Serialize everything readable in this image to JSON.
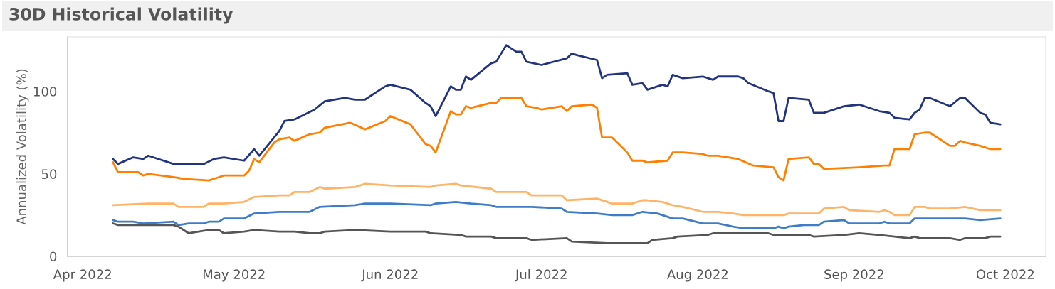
{
  "chart_data": {
    "type": "line",
    "title": "30D Historical Volatility",
    "ylabel": "Annualized Volatility (%)",
    "xlim": [
      "2022-03-29",
      "2022-10-09"
    ],
    "ylim": [
      0,
      133
    ],
    "yticks": [
      0,
      50,
      100
    ],
    "xticks": [
      {
        "value": "2022-04-01",
        "label": "Apr 2022"
      },
      {
        "value": "2022-05-01",
        "label": "May 2022"
      },
      {
        "value": "2022-06-01",
        "label": "Jun 2022"
      },
      {
        "value": "2022-07-01",
        "label": "Jul 2022"
      },
      {
        "value": "2022-08-01",
        "label": "Aug 2022"
      },
      {
        "value": "2022-09-01",
        "label": "Sep 2022"
      },
      {
        "value": "2022-10-01",
        "label": "Oct 2022"
      }
    ],
    "grid": false,
    "legend": false,
    "marker": "none",
    "line_style": "solid",
    "series": [
      {
        "color": "#22337f",
        "x": [
          "2022-04-07",
          "2022-04-08",
          "2022-04-11",
          "2022-04-13",
          "2022-04-14",
          "2022-04-19",
          "2022-04-22",
          "2022-04-25",
          "2022-04-27",
          "2022-04-29",
          "2022-05-03",
          "2022-05-05",
          "2022-05-06",
          "2022-05-10",
          "2022-05-11",
          "2022-05-13",
          "2022-05-17",
          "2022-05-19",
          "2022-05-23",
          "2022-05-25",
          "2022-05-27",
          "2022-05-31",
          "2022-06-01",
          "2022-06-05",
          "2022-06-08",
          "2022-06-09",
          "2022-06-10",
          "2022-06-13",
          "2022-06-14",
          "2022-06-15",
          "2022-06-16",
          "2022-06-17",
          "2022-06-21",
          "2022-06-22",
          "2022-06-24",
          "2022-06-26",
          "2022-06-27",
          "2022-06-28",
          "2022-07-01",
          "2022-07-06",
          "2022-07-07",
          "2022-07-08",
          "2022-07-12",
          "2022-07-13",
          "2022-07-14",
          "2022-07-18",
          "2022-07-19",
          "2022-07-21",
          "2022-07-22",
          "2022-07-25",
          "2022-07-26",
          "2022-07-27",
          "2022-07-29",
          "2022-08-02",
          "2022-08-04",
          "2022-08-05",
          "2022-08-09",
          "2022-08-10",
          "2022-08-11",
          "2022-08-15",
          "2022-08-16",
          "2022-08-17",
          "2022-08-18",
          "2022-08-19",
          "2022-08-23",
          "2022-08-24",
          "2022-08-26",
          "2022-08-30",
          "2022-09-02",
          "2022-09-06",
          "2022-09-08",
          "2022-09-09",
          "2022-09-12",
          "2022-09-13",
          "2022-09-14",
          "2022-09-15",
          "2022-09-16",
          "2022-09-20",
          "2022-09-22",
          "2022-09-23",
          "2022-09-26",
          "2022-09-27",
          "2022-09-28",
          "2022-09-30"
        ],
        "values": [
          59,
          56,
          60,
          59,
          61,
          56,
          56,
          56,
          59,
          60,
          58,
          65,
          61,
          76,
          82,
          83,
          89,
          94,
          96,
          95,
          95,
          103,
          104,
          101,
          93,
          91,
          85,
          103,
          101,
          101,
          109,
          107,
          117,
          118,
          128,
          124,
          124,
          118,
          116,
          120,
          123,
          122,
          119,
          108,
          110,
          111,
          104,
          105,
          101,
          104,
          103,
          110,
          108,
          109,
          107,
          109,
          109,
          108,
          105,
          100,
          99,
          82,
          82,
          96,
          95,
          87,
          87,
          91,
          92,
          88,
          87,
          84,
          83,
          87,
          89,
          96,
          96,
          91,
          96,
          96,
          87,
          86,
          81,
          80
        ]
      },
      {
        "color": "#ff8000",
        "x": [
          "2022-04-07",
          "2022-04-08",
          "2022-04-11",
          "2022-04-12",
          "2022-04-13",
          "2022-04-14",
          "2022-04-19",
          "2022-04-21",
          "2022-04-26",
          "2022-04-28",
          "2022-04-29",
          "2022-05-03",
          "2022-05-04",
          "2022-05-05",
          "2022-05-06",
          "2022-05-09",
          "2022-05-10",
          "2022-05-12",
          "2022-05-13",
          "2022-05-16",
          "2022-05-18",
          "2022-05-19",
          "2022-05-24",
          "2022-05-27",
          "2022-05-31",
          "2022-06-01",
          "2022-06-05",
          "2022-06-08",
          "2022-06-09",
          "2022-06-10",
          "2022-06-13",
          "2022-06-14",
          "2022-06-15",
          "2022-06-16",
          "2022-06-17",
          "2022-06-21",
          "2022-06-22",
          "2022-06-23",
          "2022-06-27",
          "2022-06-28",
          "2022-06-30",
          "2022-07-01",
          "2022-07-05",
          "2022-07-06",
          "2022-07-07",
          "2022-07-11",
          "2022-07-12",
          "2022-07-13",
          "2022-07-15",
          "2022-07-18",
          "2022-07-19",
          "2022-07-21",
          "2022-07-22",
          "2022-07-26",
          "2022-07-27",
          "2022-07-29",
          "2022-08-02",
          "2022-08-03",
          "2022-08-05",
          "2022-08-09",
          "2022-08-12",
          "2022-08-16",
          "2022-08-17",
          "2022-08-18",
          "2022-08-19",
          "2022-08-23",
          "2022-08-24",
          "2022-08-25",
          "2022-08-26",
          "2022-09-02",
          "2022-09-07",
          "2022-09-08",
          "2022-09-09",
          "2022-09-12",
          "2022-09-13",
          "2022-09-15",
          "2022-09-16",
          "2022-09-20",
          "2022-09-21",
          "2022-09-22",
          "2022-09-23",
          "2022-09-26",
          "2022-09-27",
          "2022-09-28",
          "2022-09-30"
        ],
        "values": [
          57,
          51,
          51,
          51,
          49,
          50,
          48,
          47,
          46,
          48,
          49,
          49,
          52,
          59,
          57,
          69,
          71,
          72,
          70,
          74,
          75,
          78,
          81,
          77,
          82,
          85,
          80,
          68,
          67,
          63,
          88,
          86,
          86,
          91,
          90,
          93,
          93,
          96,
          96,
          91,
          90,
          89,
          91,
          88,
          91,
          92,
          90,
          72,
          72,
          63,
          58,
          58,
          57,
          58,
          63,
          63,
          62,
          61,
          61,
          59,
          55,
          54,
          48,
          46,
          59,
          60,
          56,
          56,
          53,
          54,
          55,
          55,
          65,
          65,
          74,
          75,
          75,
          67,
          67,
          70,
          69,
          67,
          66,
          65,
          65
        ]
      },
      {
        "color": "#ffb366",
        "x": [
          "2022-04-07",
          "2022-04-14",
          "2022-04-19",
          "2022-04-20",
          "2022-04-22",
          "2022-04-25",
          "2022-04-26",
          "2022-04-29",
          "2022-05-03",
          "2022-05-05",
          "2022-05-10",
          "2022-05-12",
          "2022-05-13",
          "2022-05-16",
          "2022-05-18",
          "2022-05-19",
          "2022-05-25",
          "2022-05-27",
          "2022-06-01",
          "2022-06-09",
          "2022-06-10",
          "2022-06-14",
          "2022-06-15",
          "2022-06-21",
          "2022-06-22",
          "2022-06-28",
          "2022-06-29",
          "2022-07-05",
          "2022-07-06",
          "2022-07-12",
          "2022-07-15",
          "2022-07-19",
          "2022-07-21",
          "2022-07-22",
          "2022-07-25",
          "2022-07-27",
          "2022-07-29",
          "2022-08-02",
          "2022-08-05",
          "2022-08-08",
          "2022-08-10",
          "2022-08-16",
          "2022-08-17",
          "2022-08-18",
          "2022-08-19",
          "2022-08-24",
          "2022-08-25",
          "2022-08-26",
          "2022-08-30",
          "2022-08-31",
          "2022-09-06",
          "2022-09-07",
          "2022-09-08",
          "2022-09-09",
          "2022-09-12",
          "2022-09-13",
          "2022-09-15",
          "2022-09-16",
          "2022-09-20",
          "2022-09-23",
          "2022-09-26",
          "2022-09-28",
          "2022-09-30"
        ],
        "values": [
          31,
          32,
          32,
          30,
          30,
          30,
          32,
          32,
          33,
          36,
          37,
          37,
          39,
          39,
          42,
          41,
          42,
          44,
          43,
          42,
          43,
          44,
          43,
          41,
          39,
          39,
          37,
          37,
          34,
          35,
          32,
          32,
          34,
          34,
          33,
          31,
          30,
          27,
          27,
          26,
          25,
          25,
          25,
          25,
          26,
          26,
          26,
          29,
          30,
          28,
          27,
          28,
          27,
          25,
          25,
          30,
          30,
          29,
          29,
          30,
          28,
          28,
          28
        ]
      },
      {
        "color": "#3f7cc6",
        "x": [
          "2022-04-07",
          "2022-04-08",
          "2022-04-11",
          "2022-04-13",
          "2022-04-19",
          "2022-04-20",
          "2022-04-22",
          "2022-04-25",
          "2022-04-26",
          "2022-04-28",
          "2022-04-29",
          "2022-05-03",
          "2022-05-05",
          "2022-05-10",
          "2022-05-12",
          "2022-05-13",
          "2022-05-16",
          "2022-05-18",
          "2022-05-25",
          "2022-05-27",
          "2022-06-01",
          "2022-06-09",
          "2022-06-10",
          "2022-06-14",
          "2022-06-17",
          "2022-06-21",
          "2022-06-22",
          "2022-06-28",
          "2022-06-29",
          "2022-07-05",
          "2022-07-06",
          "2022-07-12",
          "2022-07-15",
          "2022-07-19",
          "2022-07-21",
          "2022-07-24",
          "2022-07-27",
          "2022-07-29",
          "2022-08-02",
          "2022-08-05",
          "2022-08-08",
          "2022-08-10",
          "2022-08-16",
          "2022-08-17",
          "2022-08-18",
          "2022-08-19",
          "2022-08-22",
          "2022-08-25",
          "2022-08-26",
          "2022-08-30",
          "2022-08-31",
          "2022-09-06",
          "2022-09-07",
          "2022-09-08",
          "2022-09-12",
          "2022-09-13",
          "2022-09-15",
          "2022-09-16",
          "2022-09-20",
          "2022-09-23",
          "2022-09-26",
          "2022-09-30"
        ],
        "values": [
          22,
          21,
          21,
          20,
          21,
          19,
          20,
          20,
          21,
          21,
          23,
          23,
          26,
          27,
          27,
          27,
          27,
          30,
          31,
          32,
          32,
          31,
          32,
          33,
          32,
          31,
          30,
          30,
          30,
          29,
          27,
          26,
          25,
          25,
          27,
          26,
          23,
          23,
          20,
          20,
          18,
          17,
          17,
          18,
          17,
          18,
          19,
          19,
          21,
          22,
          20,
          20,
          21,
          20,
          20,
          23,
          23,
          23,
          23,
          23,
          22,
          23
        ]
      },
      {
        "color": "#555555",
        "x": [
          "2022-04-07",
          "2022-04-08",
          "2022-04-19",
          "2022-04-20",
          "2022-04-22",
          "2022-04-26",
          "2022-04-28",
          "2022-04-29",
          "2022-05-03",
          "2022-05-05",
          "2022-05-10",
          "2022-05-11",
          "2022-05-13",
          "2022-05-16",
          "2022-05-18",
          "2022-05-19",
          "2022-05-25",
          "2022-06-01",
          "2022-06-08",
          "2022-06-09",
          "2022-06-15",
          "2022-06-16",
          "2022-06-21",
          "2022-06-22",
          "2022-06-28",
          "2022-06-29",
          "2022-07-06",
          "2022-07-07",
          "2022-07-14",
          "2022-07-15",
          "2022-07-22",
          "2022-07-23",
          "2022-07-27",
          "2022-07-28",
          "2022-08-03",
          "2022-08-04",
          "2022-08-15",
          "2022-08-16",
          "2022-08-23",
          "2022-08-24",
          "2022-08-30",
          "2022-09-02",
          "2022-09-06",
          "2022-09-09",
          "2022-09-12",
          "2022-09-13",
          "2022-09-14",
          "2022-09-16",
          "2022-09-20",
          "2022-09-22",
          "2022-09-23",
          "2022-09-27",
          "2022-09-28",
          "2022-09-30"
        ],
        "values": [
          20,
          19,
          19,
          18,
          14,
          16,
          16,
          14,
          15,
          16,
          15,
          15,
          15,
          14,
          14,
          15,
          16,
          15,
          15,
          14,
          13,
          12,
          12,
          11,
          11,
          10,
          11,
          9,
          8,
          8,
          8,
          10,
          11,
          12,
          13,
          14,
          14,
          13,
          13,
          12,
          13,
          14,
          13,
          12,
          11,
          12,
          11,
          11,
          11,
          10,
          11,
          11,
          12,
          12
        ]
      }
    ]
  }
}
